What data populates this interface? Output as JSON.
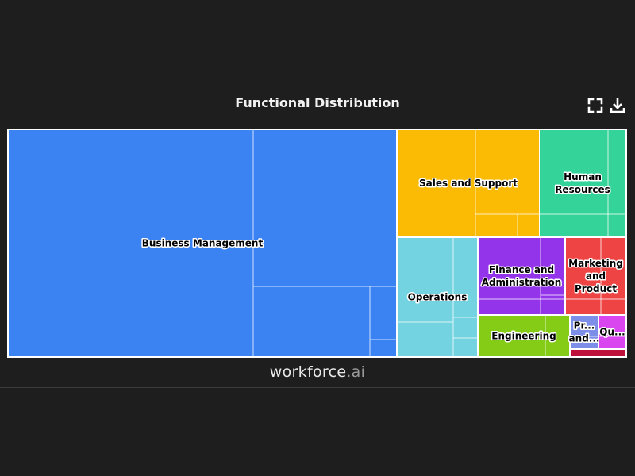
{
  "chart_data": {
    "type": "treemap",
    "title": "Functional Distribution",
    "categories": [
      {
        "name": "Business Management",
        "label": [
          "Business Management"
        ],
        "color": "#3b82f3",
        "value": 49.5
      },
      {
        "name": "Sales and Support",
        "label": [
          "Sales and Support"
        ],
        "color": "#fbbb04",
        "value": 9.7
      },
      {
        "name": "Human Resources",
        "label": [
          "Human",
          "Resources"
        ],
        "color": "#34d399",
        "value": 7.1
      },
      {
        "name": "Operations",
        "label": [
          "Operations"
        ],
        "color": "#74d3e1",
        "value": 8.1
      },
      {
        "name": "Finance and Administration",
        "label": [
          "Finance and",
          "Administration"
        ],
        "color": "#9333ea",
        "value": 5.9
      },
      {
        "name": "Marketing and Product",
        "label": [
          "Marketing",
          "and",
          "Product"
        ],
        "color": "#ef4444",
        "value": 5.2
      },
      {
        "name": "Engineering",
        "label": [
          "Engineering"
        ],
        "color": "#84cc16",
        "value": 3.2
      },
      {
        "name": "Pr... and...",
        "label": [
          "Pr...",
          "and..."
        ],
        "color": "#7c8ee8",
        "value": 0.8
      },
      {
        "name": "Qu...",
        "label": [
          "Qu..."
        ],
        "color": "#d946ef",
        "value": 0.8
      },
      {
        "name": "",
        "label": [],
        "color": "#be123c",
        "value": 0.2
      }
    ]
  },
  "toolbar": {
    "fullscreen_icon": "fullscreen-icon",
    "download_icon": "download-icon"
  },
  "brand": {
    "name": "workforce",
    "ext": ".ai"
  }
}
